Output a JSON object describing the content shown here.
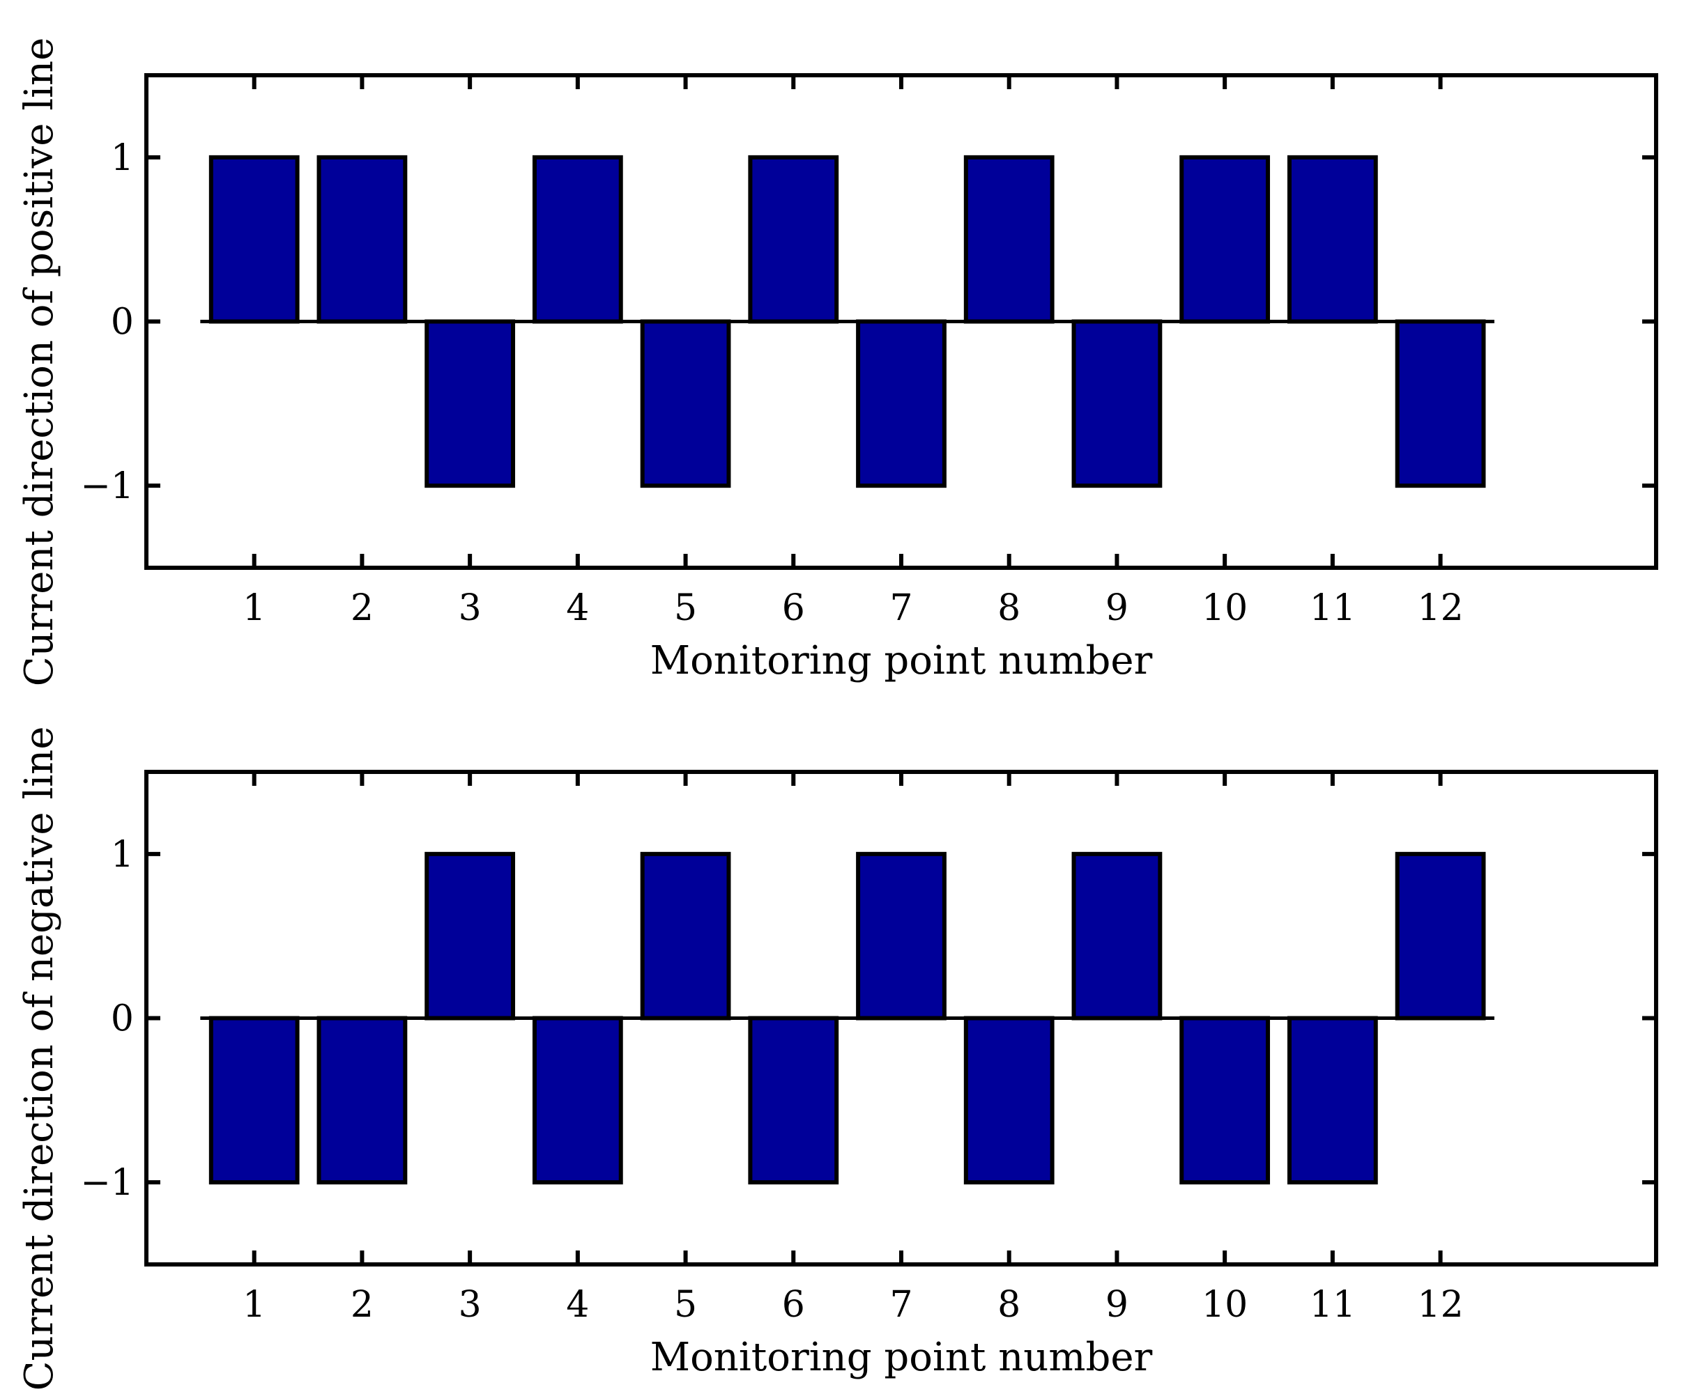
{
  "colors": {
    "bar_fill": "#000099",
    "bar_edge": "#000000",
    "axes": "#000000",
    "background": "#ffffff"
  },
  "chart_data": [
    {
      "type": "bar",
      "categories": [
        "1",
        "2",
        "3",
        "4",
        "5",
        "6",
        "7",
        "8",
        "9",
        "10",
        "11",
        "12"
      ],
      "values": [
        1,
        1,
        -1,
        1,
        -1,
        1,
        -1,
        1,
        -1,
        1,
        1,
        -1
      ],
      "xlabel": "Monitoring point number",
      "ylabel": "Current direction of positive line",
      "xlim": [
        0,
        14
      ],
      "ylim": [
        -1.5,
        1.5
      ],
      "yticks": [
        -1,
        0,
        1
      ],
      "ytick_labels": [
        "−1",
        "0",
        "1"
      ],
      "grid": false,
      "legend": "none"
    },
    {
      "type": "bar",
      "categories": [
        "1",
        "2",
        "3",
        "4",
        "5",
        "6",
        "7",
        "8",
        "9",
        "10",
        "11",
        "12"
      ],
      "values": [
        -1,
        -1,
        1,
        -1,
        1,
        -1,
        1,
        -1,
        1,
        -1,
        -1,
        1
      ],
      "xlabel": "Monitoring point number",
      "ylabel": "Current direction of negative line",
      "xlim": [
        0,
        14
      ],
      "ylim": [
        -1.5,
        1.5
      ],
      "yticks": [
        -1,
        0,
        1
      ],
      "ytick_labels": [
        "−1",
        "0",
        "1"
      ],
      "grid": false,
      "legend": "none"
    }
  ]
}
